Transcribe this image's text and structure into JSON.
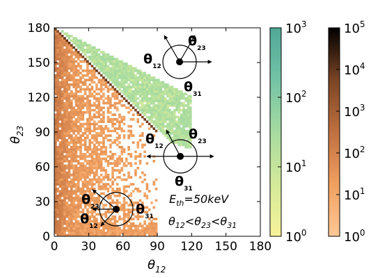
{
  "chart_data": {
    "type": "heatmap",
    "xlabel": "θ",
    "xlabel_sub": "12",
    "ylabel": "θ",
    "ylabel_sub": "23",
    "xlim": [
      0,
      180
    ],
    "ylim": [
      0,
      180
    ],
    "xticks": [
      "0",
      "30",
      "60",
      "90",
      "120",
      "150",
      "180"
    ],
    "yticks": [
      "0",
      "30",
      "60",
      "90",
      "120",
      "150",
      "180"
    ],
    "annotation_energy": {
      "lhs": "E",
      "lhs_sub": "th",
      "rhs": "=50keV"
    },
    "annotation_order": {
      "a": "θ",
      "a_sub": "12",
      "b": "θ",
      "b_sub": "23",
      "c": "θ",
      "c_sub": "31",
      "op": "<"
    },
    "diagram_labels": {
      "symbol": "θ",
      "s12": "12",
      "s23": "23",
      "s31": "31"
    },
    "colorbar_green": {
      "scale": "log",
      "range": [
        1,
        1000
      ],
      "ticks": [
        {
          "base": "10",
          "exp": "0"
        },
        {
          "base": "10",
          "exp": "1"
        },
        {
          "base": "10",
          "exp": "2"
        },
        {
          "base": "10",
          "exp": "3"
        }
      ],
      "colors": [
        "#f7f39a",
        "#d4ea9a",
        "#a6dba0",
        "#74c3a6",
        "#4fa896"
      ]
    },
    "colorbar_copper": {
      "scale": "log",
      "range": [
        1,
        100000
      ],
      "ticks": [
        {
          "base": "10",
          "exp": "0"
        },
        {
          "base": "10",
          "exp": "1"
        },
        {
          "base": "10",
          "exp": "2"
        },
        {
          "base": "10",
          "exp": "3"
        },
        {
          "base": "10",
          "exp": "4"
        },
        {
          "base": "10",
          "exp": "5"
        }
      ],
      "colors": [
        "#ffc896",
        "#f0a060",
        "#c07040",
        "#7a4424",
        "#000000"
      ]
    },
    "regions": {
      "copper_triangle": {
        "x": [
          0,
          90
        ],
        "y_upper": "180 - x",
        "typical_counts": 10
      },
      "diagonal_line": {
        "x": [
          0,
          90
        ],
        "y": "180 - x",
        "counts": 10000
      },
      "green_band": {
        "x": [
          0,
          120
        ],
        "y_upper": "180 - x/2",
        "y_lower": "180 - x",
        "typical_counts": 20
      }
    }
  }
}
